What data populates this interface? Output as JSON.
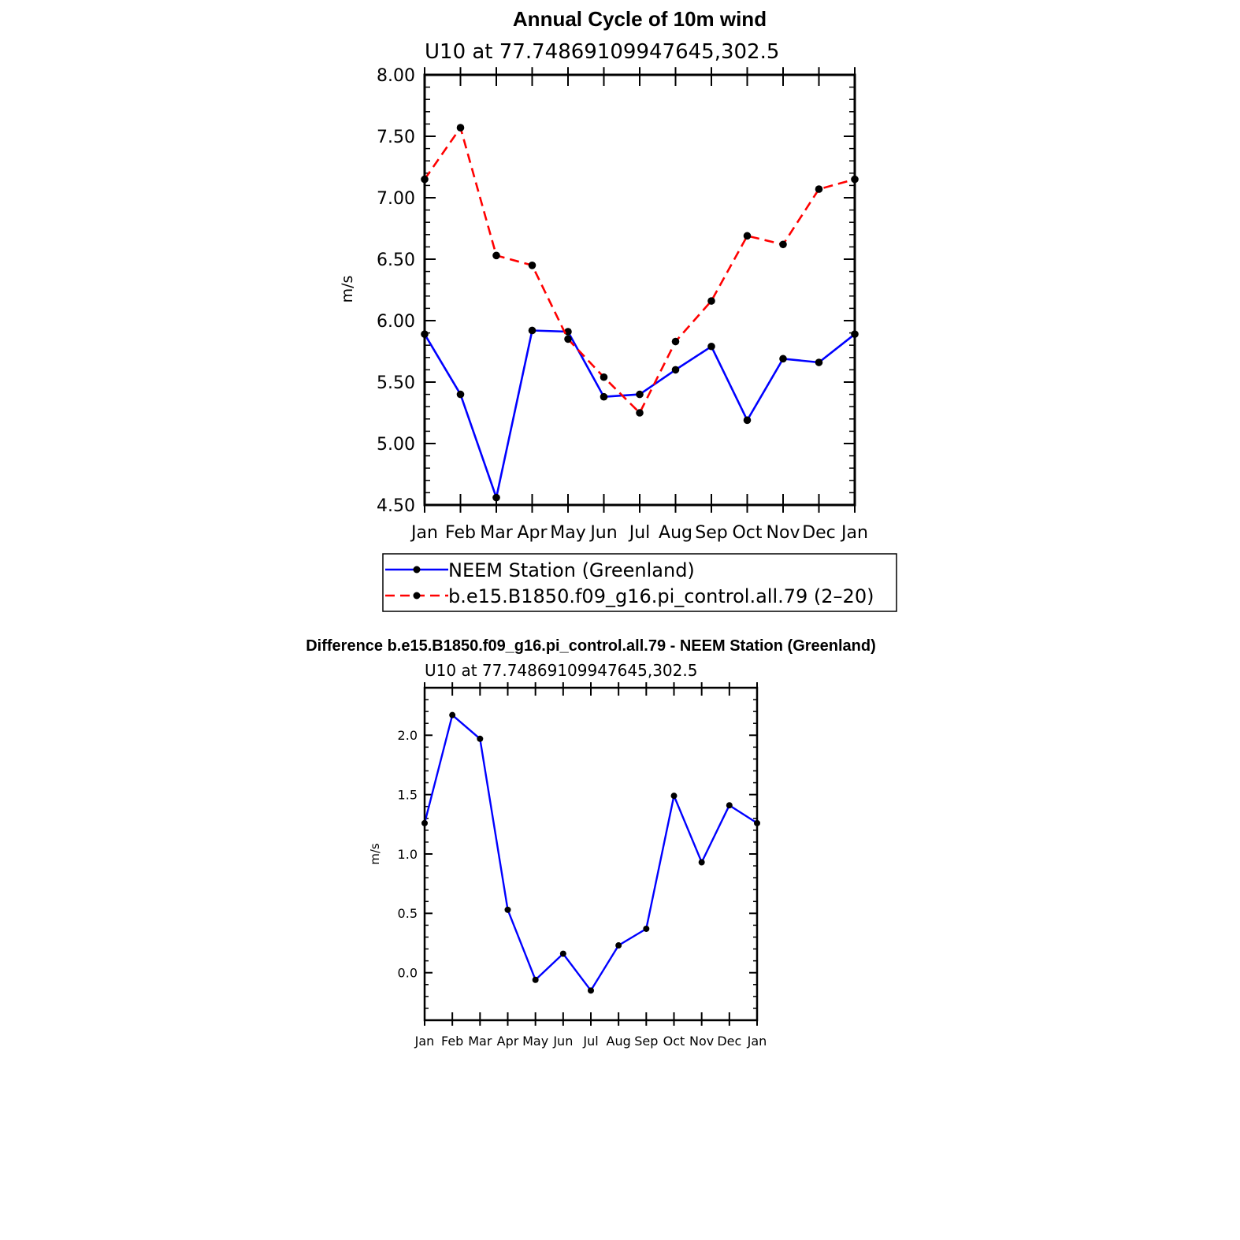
{
  "chart_data": [
    {
      "type": "line",
      "title": "Annual Cycle of 10m wind",
      "subtitle": "U10 at 77.74869109947645,302.5",
      "xlabel": "",
      "ylabel": "m/s",
      "categories": [
        "Jan",
        "Feb",
        "Mar",
        "Apr",
        "May",
        "Jun",
        "Jul",
        "Aug",
        "Sep",
        "Oct",
        "Nov",
        "Dec",
        "Jan"
      ],
      "ylim": [
        4.5,
        8.0
      ],
      "yticks": [
        4.5,
        5.0,
        5.5,
        6.0,
        6.5,
        7.0,
        7.5,
        8.0
      ],
      "ytick_labels": [
        "4.50",
        "5.00",
        "5.50",
        "6.00",
        "6.50",
        "7.00",
        "7.50",
        "8.00"
      ],
      "legend_position": "bottom",
      "series": [
        {
          "name": "NEEM Station (Greenland)",
          "color": "#0000ff",
          "dash": "solid",
          "values": [
            5.89,
            5.4,
            4.56,
            5.92,
            5.91,
            5.38,
            5.4,
            5.6,
            5.79,
            5.19,
            5.69,
            5.66,
            5.89
          ]
        },
        {
          "name": "b.e15.B1850.f09_g16.pi_control.all.79 (2–20)",
          "color": "#ff0000",
          "dash": "dashed",
          "values": [
            7.15,
            7.57,
            6.53,
            6.45,
            5.85,
            5.54,
            5.25,
            5.83,
            6.16,
            6.69,
            6.62,
            7.07,
            7.15
          ]
        }
      ]
    },
    {
      "type": "line",
      "title": "Difference b.e15.B1850.f09_g16.pi_control.all.79 - NEEM Station (Greenland)",
      "subtitle": "U10 at 77.74869109947645,302.5",
      "xlabel": "",
      "ylabel": "m/s",
      "categories": [
        "Jan",
        "Feb",
        "Mar",
        "Apr",
        "May",
        "Jun",
        "Jul",
        "Aug",
        "Sep",
        "Oct",
        "Nov",
        "Dec",
        "Jan"
      ],
      "ylim": [
        -0.4,
        2.4
      ],
      "yticks": [
        0.0,
        0.5,
        1.0,
        1.5,
        2.0
      ],
      "ytick_labels": [
        "0.0",
        "0.5",
        "1.0",
        "1.5",
        "2.0"
      ],
      "series": [
        {
          "color": "#0000ff",
          "dash": "solid",
          "values": [
            1.26,
            2.17,
            1.97,
            0.53,
            -0.06,
            0.16,
            -0.15,
            0.23,
            0.37,
            1.49,
            0.93,
            1.41,
            1.26
          ]
        }
      ]
    }
  ]
}
